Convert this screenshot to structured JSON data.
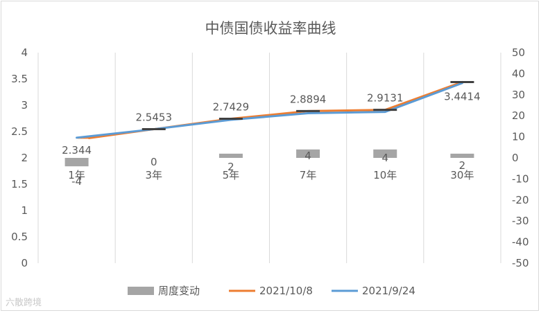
{
  "chart_data": {
    "type": "bar",
    "title": "中债国债收益率曲线",
    "categories": [
      "1年",
      "3年",
      "5年",
      "7年",
      "10年",
      "30年"
    ],
    "left_axis": {
      "ylim": [
        0,
        4
      ],
      "ticks": [
        "0",
        "0.5",
        "1",
        "1.5",
        "2",
        "2.5",
        "3",
        "3.5",
        "4"
      ]
    },
    "right_axis": {
      "ylim": [
        -50,
        50
      ],
      "ticks": [
        "-50",
        "-40",
        "-30",
        "-20",
        "-10",
        "0",
        "10",
        "20",
        "30",
        "40",
        "50"
      ]
    },
    "series": [
      {
        "name": "周度变动",
        "kind": "bar",
        "axis": "right",
        "color": "#a5a5a5",
        "values": [
          -4,
          0,
          2,
          4,
          4,
          2
        ]
      },
      {
        "name": "2021/10/8",
        "kind": "line",
        "axis": "left",
        "color": "#ed7d31",
        "values": [
          2.344,
          2.5453,
          2.7429,
          2.8894,
          2.9131,
          3.4414
        ]
      },
      {
        "name": "2021/9/24",
        "kind": "line",
        "axis": "left",
        "color": "#5b9bd5",
        "values": [
          2.384,
          2.5453,
          2.7229,
          2.8494,
          2.8731,
          3.4214
        ]
      }
    ],
    "value_labels": [
      "2.344",
      "2.5453",
      "2.7429",
      "2.8894",
      "2.9131",
      "3.4414"
    ],
    "bar_labels": [
      "-4",
      "0",
      "2",
      "4",
      "4",
      "2"
    ],
    "legend_position": "bottom",
    "grid": "vertical category lines"
  },
  "watermark": "六散跨境"
}
